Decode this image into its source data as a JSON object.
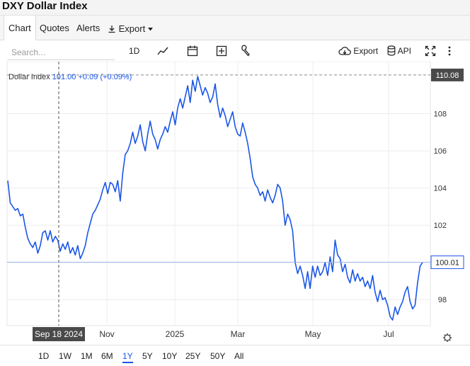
{
  "title": "DXY Dollar Index",
  "tabs": [
    {
      "label": "Chart"
    },
    {
      "label": "Quotes"
    },
    {
      "label": "Alerts"
    },
    {
      "label": "Export"
    }
  ],
  "toolbar": {
    "search_placeholder": "Search...",
    "interval": "1D",
    "export_label": "Export",
    "api_label": "API",
    "icons": [
      "line-chart-icon",
      "calendar-icon",
      "plus-box-icon",
      "wrench-icon",
      "cloud-download-icon",
      "database-icon",
      "fullscreen-icon",
      "more-vertical-icon"
    ]
  },
  "legend": {
    "name": "Dollar Index",
    "value": "101.00",
    "change": "+0.09 (+0.09%)"
  },
  "colors": {
    "line": "#1a56e8",
    "accent": "#1a56e8",
    "price_tag_dark": "#4a4a4a"
  },
  "range_buttons": [
    "1D",
    "1W",
    "1M",
    "6M",
    "1Y",
    "5Y",
    "10Y",
    "25Y",
    "50Y",
    "All"
  ],
  "range_active": "1Y",
  "chart_data": {
    "type": "line",
    "x_tick_labels": [
      "Nov",
      "2025",
      "Mar",
      "May",
      "Jul"
    ],
    "y_tick_labels": [
      "98",
      "100",
      "102",
      "104",
      "106",
      "108"
    ],
    "ylim": [
      96.6,
      110.8
    ],
    "grid": true,
    "crosshair_date_label": "Sep 18 2024",
    "high_price_label": "110.08",
    "last_price_label": "100.01",
    "series": [
      {
        "values": [
          104.4,
          103.2,
          103.0,
          102.8,
          102.9,
          102.5,
          102.6,
          101.9,
          101.3,
          101.0,
          100.8,
          101.1,
          100.5,
          100.9,
          101.6,
          101.7,
          101.2,
          101.7,
          101.1,
          101.4,
          101.2,
          100.6,
          101.0,
          100.7,
          101.1,
          100.5,
          100.8,
          100.4,
          100.9,
          100.2,
          100.5,
          100.9,
          101.6,
          102.1,
          102.6,
          102.8,
          103.1,
          103.4,
          103.9,
          104.3,
          103.7,
          104.3,
          104.2,
          103.8,
          104.4,
          103.3,
          104.8,
          105.8,
          106.0,
          106.4,
          107.0,
          106.4,
          106.8,
          107.4,
          106.5,
          106.0,
          106.9,
          107.6,
          106.9,
          106.6,
          106.1,
          106.6,
          106.9,
          107.3,
          107.0,
          107.6,
          108.1,
          107.4,
          108.3,
          108.8,
          108.3,
          108.9,
          109.5,
          108.6,
          109.8,
          109.2,
          110.0,
          109.5,
          109.0,
          109.4,
          109.1,
          108.6,
          108.9,
          109.6,
          108.5,
          107.8,
          108.3,
          107.9,
          107.3,
          107.7,
          108.1,
          107.3,
          106.9,
          106.8,
          107.5,
          107.0,
          106.4,
          105.6,
          104.6,
          104.2,
          104.0,
          103.6,
          103.8,
          103.3,
          103.9,
          103.5,
          103.2,
          103.6,
          104.2,
          104.0,
          103.3,
          102.0,
          102.6,
          102.3,
          101.7,
          100.0,
          99.4,
          99.8,
          99.3,
          98.6,
          99.5,
          98.6,
          99.8,
          99.2,
          99.8,
          99.3,
          99.5,
          100.0,
          99.3,
          100.3,
          99.5,
          101.2,
          100.4,
          100.2,
          99.5,
          99.9,
          99.2,
          98.9,
          99.6,
          99.0,
          99.4,
          99.0,
          99.2,
          98.7,
          99.0,
          98.6,
          99.3,
          98.4,
          97.9,
          98.5,
          98.0,
          98.1,
          97.7,
          97.1,
          96.9,
          97.6,
          97.2,
          97.6,
          97.9,
          98.4,
          98.7,
          97.9,
          97.5,
          97.7,
          98.9,
          99.8,
          100.01
        ]
      }
    ]
  }
}
